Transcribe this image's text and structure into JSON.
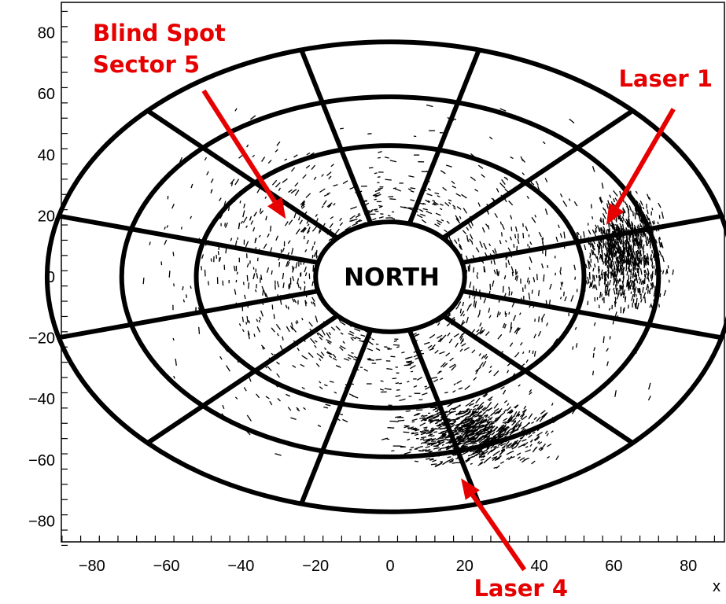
{
  "chart_data": {
    "type": "scatter",
    "title": "",
    "xlabel": "x",
    "ylabel": "",
    "xlim": [
      -88,
      90
    ],
    "ylim": [
      -88,
      90
    ],
    "x_ticks": [
      -80,
      -60,
      -40,
      -20,
      0,
      20,
      40,
      60,
      80
    ],
    "y_ticks": [
      -80,
      -60,
      -40,
      -20,
      0,
      20,
      40,
      60,
      80
    ],
    "x_tick_labels": [
      "−80",
      "−60",
      "−40",
      "−20",
      "0",
      "20",
      "40",
      "60",
      "80"
    ],
    "y_tick_labels": [
      "−80",
      "−60",
      "−40",
      "−20",
      "0",
      "20",
      "40",
      "60",
      "80"
    ],
    "grid": false,
    "detector": {
      "center_label": "NORTH",
      "ring_radii": {
        "inner": [
          20,
          18
        ],
        "middle": [
          52,
          43
        ],
        "outer": [
          72,
          59
        ],
        "outermost": [
          92,
          77
        ]
      },
      "sectors": 12,
      "first_spoke_angle_deg": 15
    },
    "annotations": [
      {
        "name": "blind-spot-label",
        "lines": [
          "Blind Spot",
          "Sector 5"
        ],
        "arrow_from": [
          -50,
          61
        ],
        "arrow_to": [
          -28,
          19
        ],
        "color": "#e60000"
      },
      {
        "name": "laser-1-label",
        "lines": [
          "Laser 1"
        ],
        "arrow_from": [
          76,
          55
        ],
        "arrow_to": [
          58,
          17
        ],
        "color": "#e60000"
      },
      {
        "name": "laser-4-label",
        "lines": [
          "Laser 4"
        ],
        "arrow_from": [
          36,
          -96
        ],
        "arrow_to": [
          19,
          -66
        ],
        "color": "#e60000"
      }
    ],
    "hits": [
      {
        "name": "laser-1-cluster",
        "center": [
          63,
          8
        ],
        "spread": [
          14,
          24
        ],
        "count": 900
      },
      {
        "name": "laser-4-cluster",
        "center": [
          22,
          -51
        ],
        "spread": [
          26,
          14
        ],
        "count": 900
      },
      {
        "name": "background-tracks",
        "center": [
          0,
          0
        ],
        "spread": [
          78,
          63
        ],
        "count": 1400
      }
    ]
  }
}
